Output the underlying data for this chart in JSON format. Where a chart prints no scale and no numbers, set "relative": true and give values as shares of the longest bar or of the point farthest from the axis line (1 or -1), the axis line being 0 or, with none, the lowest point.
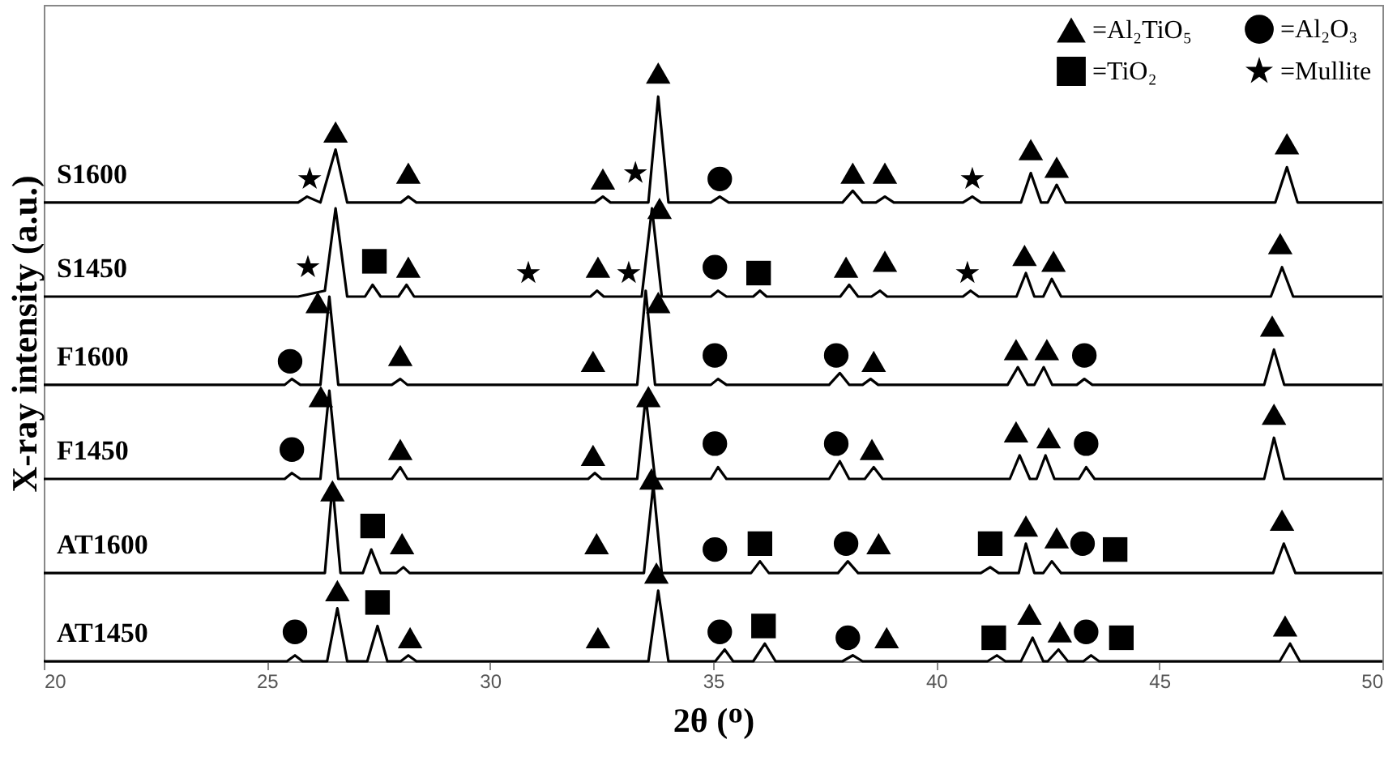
{
  "chart_data": {
    "type": "line",
    "relative": true,
    "xlabel": "2θ (ᴼ)",
    "ylabel": "X-ray intensity (a.u.)",
    "xlim": [
      20,
      50
    ],
    "xticks": [
      20,
      25,
      30,
      35,
      40,
      45,
      50
    ],
    "legend": "top right",
    "line_style": "solid",
    "series": [
      {
        "name": "S1600",
        "color": "#000000",
        "x": [
          20,
          25.7,
          25.9,
          26.2,
          26.54,
          26.8,
          28.0,
          28.17,
          28.35,
          32.35,
          32.53,
          32.7,
          33.55,
          33.77,
          34.0,
          34.95,
          35.15,
          35.35,
          37.9,
          38.13,
          38.35,
          38.65,
          38.85,
          39.05,
          40.6,
          40.81,
          41.0,
          41.9,
          42.12,
          42.35,
          42.5,
          42.7,
          42.9,
          47.6,
          47.86,
          48.1,
          50
        ],
        "values": [
          0.78,
          0.78,
          0.79,
          0.78,
          0.87,
          0.78,
          0.78,
          0.79,
          0.78,
          0.78,
          0.79,
          0.78,
          0.78,
          0.96,
          0.78,
          0.78,
          0.79,
          0.78,
          0.78,
          0.8,
          0.78,
          0.78,
          0.79,
          0.78,
          0.78,
          0.79,
          0.78,
          0.78,
          0.83,
          0.78,
          0.78,
          0.81,
          0.78,
          0.78,
          0.84,
          0.78,
          0.78
        ]
      },
      {
        "name": "S1450",
        "color": "#000000",
        "x": [
          20,
          25.7,
          26.3,
          26.54,
          26.8,
          27.2,
          27.37,
          27.55,
          27.95,
          28.13,
          28.3,
          32.25,
          32.4,
          32.55,
          33.4,
          33.63,
          33.85,
          34.95,
          35.11,
          35.3,
          35.9,
          36.05,
          36.2,
          37.85,
          38.05,
          38.25,
          38.55,
          38.74,
          38.9,
          40.6,
          40.77,
          40.95,
          41.8,
          42.01,
          42.2,
          42.4,
          42.59,
          42.8,
          47.5,
          47.75,
          48.0,
          50
        ],
        "values": [
          0.62,
          0.62,
          0.63,
          0.77,
          0.62,
          0.62,
          0.64,
          0.62,
          0.62,
          0.64,
          0.62,
          0.62,
          0.63,
          0.62,
          0.62,
          0.77,
          0.62,
          0.62,
          0.63,
          0.62,
          0.62,
          0.63,
          0.62,
          0.62,
          0.64,
          0.62,
          0.62,
          0.63,
          0.62,
          0.62,
          0.63,
          0.62,
          0.62,
          0.66,
          0.62,
          0.62,
          0.65,
          0.62,
          0.62,
          0.67,
          0.62,
          0.62
        ]
      },
      {
        "name": "F1600",
        "color": "#000000",
        "x": [
          20,
          25.4,
          25.56,
          25.75,
          26.2,
          26.4,
          26.6,
          27.8,
          27.99,
          28.15,
          33.3,
          33.49,
          33.7,
          34.95,
          35.11,
          35.3,
          37.6,
          37.84,
          38.05,
          38.35,
          38.53,
          38.7,
          41.6,
          41.83,
          42.05,
          42.2,
          42.41,
          42.6,
          43.15,
          43.32,
          43.5,
          47.35,
          47.57,
          47.8,
          50
        ],
        "values": [
          0.47,
          0.47,
          0.48,
          0.47,
          0.47,
          0.62,
          0.47,
          0.47,
          0.48,
          0.47,
          0.47,
          0.63,
          0.47,
          0.47,
          0.48,
          0.47,
          0.47,
          0.49,
          0.47,
          0.47,
          0.48,
          0.47,
          0.47,
          0.5,
          0.47,
          0.47,
          0.5,
          0.47,
          0.47,
          0.48,
          0.47,
          0.47,
          0.53,
          0.47,
          0.47
        ]
      },
      {
        "name": "F1450",
        "color": "#000000",
        "x": [
          20,
          25.4,
          25.56,
          25.75,
          26.2,
          26.4,
          26.6,
          27.8,
          27.99,
          28.15,
          32.2,
          32.35,
          32.5,
          33.3,
          33.49,
          33.7,
          34.95,
          35.11,
          35.3,
          37.6,
          37.84,
          38.05,
          38.4,
          38.6,
          38.8,
          41.65,
          41.87,
          42.1,
          42.25,
          42.45,
          42.65,
          43.2,
          43.36,
          43.55,
          47.35,
          47.57,
          47.8,
          50
        ],
        "values": [
          0.31,
          0.31,
          0.32,
          0.31,
          0.31,
          0.46,
          0.31,
          0.31,
          0.33,
          0.31,
          0.31,
          0.32,
          0.31,
          0.31,
          0.45,
          0.31,
          0.31,
          0.33,
          0.31,
          0.31,
          0.34,
          0.31,
          0.31,
          0.33,
          0.31,
          0.31,
          0.35,
          0.31,
          0.31,
          0.35,
          0.31,
          0.31,
          0.33,
          0.31,
          0.31,
          0.38,
          0.31,
          0.31
        ]
      },
      {
        "name": "AT1600",
        "color": "#000000",
        "x": [
          20,
          26.3,
          26.47,
          26.65,
          27.15,
          27.34,
          27.55,
          27.9,
          28.06,
          28.2,
          33.45,
          33.66,
          33.85,
          35.85,
          36.05,
          36.25,
          37.8,
          38.02,
          38.25,
          41.0,
          41.21,
          41.4,
          41.85,
          42.01,
          42.2,
          42.4,
          42.59,
          42.8,
          47.55,
          47.79,
          48.05,
          50
        ],
        "values": [
          0.15,
          0.15,
          0.3,
          0.15,
          0.15,
          0.19,
          0.15,
          0.15,
          0.16,
          0.15,
          0.15,
          0.3,
          0.15,
          0.15,
          0.17,
          0.15,
          0.15,
          0.17,
          0.15,
          0.15,
          0.16,
          0.15,
          0.15,
          0.2,
          0.15,
          0.15,
          0.17,
          0.15,
          0.15,
          0.2,
          0.15,
          0.15
        ]
      },
      {
        "name": "AT1450",
        "color": "#000000",
        "x": [
          20,
          25.45,
          25.63,
          25.8,
          26.35,
          26.58,
          26.8,
          27.25,
          27.48,
          27.7,
          28.0,
          28.17,
          28.35,
          33.55,
          33.77,
          34.0,
          35.05,
          35.26,
          35.45,
          35.9,
          36.16,
          36.4,
          37.9,
          38.13,
          38.35,
          41.15,
          41.36,
          41.55,
          41.9,
          42.16,
          42.4,
          42.5,
          42.74,
          42.95,
          43.3,
          43.47,
          43.65,
          47.7,
          47.93,
          48.15,
          50
        ],
        "values": [
          0,
          0,
          0.01,
          0,
          0,
          0.09,
          0,
          0,
          0.06,
          0,
          0,
          0.01,
          0,
          0,
          0.12,
          0,
          0,
          0.02,
          0,
          0,
          0.03,
          0,
          0,
          0.01,
          0,
          0,
          0.01,
          0,
          0,
          0.04,
          0,
          0,
          0.02,
          0,
          0,
          0.01,
          0,
          0,
          0.03,
          0,
          0
        ]
      },
      {
        "name": "=Al₂TiO₅",
        "type": "scatter",
        "marker": "triangle",
        "color": "#000000",
        "x": [
          26.54,
          28.17,
          32.53,
          33.77,
          38.13,
          38.85,
          42.12,
          42.7,
          47.86,
          28.17,
          32.42,
          33.8,
          37.98,
          38.85,
          41.98,
          42.63,
          47.71,
          26.14,
          27.99,
          32.31,
          33.77,
          38.6,
          41.79,
          42.48,
          47.53,
          26.21,
          27.99,
          32.31,
          33.55,
          38.56,
          41.79,
          42.52,
          47.57,
          26.47,
          28.03,
          32.39,
          33.62,
          38.71,
          42.01,
          42.7,
          47.75,
          26.58,
          28.21,
          32.42,
          33.73,
          38.89,
          42.09,
          42.77,
          47.82
        ],
        "values": [
          0.9,
          0.83,
          0.82,
          1,
          0.83,
          0.83,
          0.87,
          0.84,
          0.88,
          0.67,
          0.67,
          0.77,
          0.67,
          0.68,
          0.69,
          0.68,
          0.71,
          0.61,
          0.52,
          0.51,
          0.61,
          0.51,
          0.53,
          0.53,
          0.57,
          0.45,
          0.36,
          0.35,
          0.45,
          0.36,
          0.39,
          0.38,
          0.42,
          0.29,
          0.2,
          0.2,
          0.31,
          0.2,
          0.23,
          0.21,
          0.24,
          0.12,
          0.04,
          0.04,
          0.15,
          0.04,
          0.08,
          0.05,
          0.06
        ]
      },
      {
        "name": "=TiO₂",
        "type": "scatter",
        "marker": "square",
        "color": "#000000",
        "x": [
          27.41,
          36.02,
          27.37,
          36.05,
          41.21,
          44.01,
          27.48,
          36.13,
          41.29,
          44.15
        ],
        "values": [
          0.68,
          0.66,
          0.23,
          0.2,
          0.2,
          0.19,
          0.1,
          0.06,
          0.04,
          0.04
        ]
      },
      {
        "name": "=Al₂O₃",
        "type": "scatter",
        "marker": "circle",
        "color": "#000000",
        "x": [
          35.15,
          35.04,
          25.52,
          35.04,
          37.76,
          43.32,
          25.56,
          35.04,
          37.76,
          43.36,
          35.04,
          37.98,
          43.28,
          25.63,
          35.15,
          38.02,
          43.36
        ],
        "values": [
          0.82,
          0.67,
          0.51,
          0.52,
          0.52,
          0.52,
          0.36,
          0.37,
          0.37,
          0.37,
          0.19,
          0.2,
          0.2,
          0.05,
          0.05,
          0.04,
          0.05
        ]
      },
      {
        "name": "=Mullite",
        "type": "scatter",
        "marker": "star",
        "color": "#000000",
        "x": [
          25.96,
          33.26,
          40.81,
          25.92,
          30.86,
          33.11,
          40.7
        ],
        "values": [
          0.82,
          0.83,
          0.82,
          0.67,
          0.66,
          0.66,
          0.66
        ]
      }
    ]
  }
}
